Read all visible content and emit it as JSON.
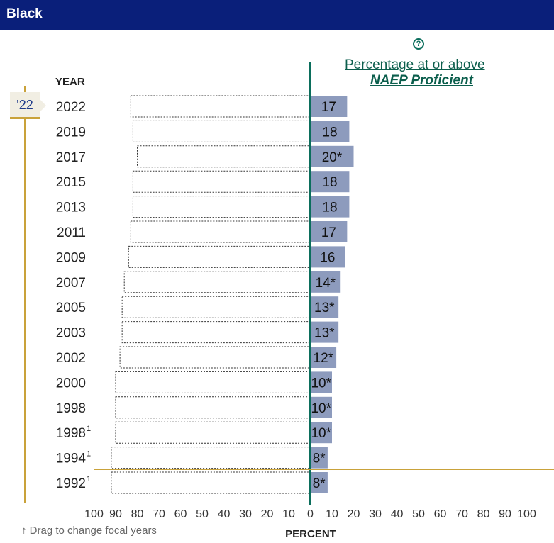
{
  "header": {
    "title": "Black"
  },
  "measure": {
    "line1": "Percentage at or above",
    "line2": "NAEP Proficient"
  },
  "help_icon": "help-circle-icon",
  "focal": {
    "label": "'22"
  },
  "drag_hint": "↑ Drag to change focal years",
  "colors": {
    "header": "#0a1f7a",
    "bar": "#8d9bbd",
    "axis": "#0b6e5c",
    "slider": "#c9a23a"
  },
  "chart_data": {
    "type": "bar",
    "orientation": "horizontal",
    "y_header": "YEAR",
    "xlabel": "PERCENT",
    "xlim": [
      -100,
      100
    ],
    "x_ticks": [
      "100",
      "90",
      "80",
      "70",
      "60",
      "50",
      "40",
      "30",
      "20",
      "10",
      "0",
      "10",
      "20",
      "30",
      "40",
      "50",
      "60",
      "70",
      "80",
      "90",
      "100"
    ],
    "categories": [
      {
        "year": "2022",
        "sup": ""
      },
      {
        "year": "2019",
        "sup": ""
      },
      {
        "year": "2017",
        "sup": ""
      },
      {
        "year": "2015",
        "sup": ""
      },
      {
        "year": "2013",
        "sup": ""
      },
      {
        "year": "2011",
        "sup": ""
      },
      {
        "year": "2009",
        "sup": ""
      },
      {
        "year": "2007",
        "sup": ""
      },
      {
        "year": "2005",
        "sup": ""
      },
      {
        "year": "2003",
        "sup": ""
      },
      {
        "year": "2002",
        "sup": ""
      },
      {
        "year": "2000",
        "sup": ""
      },
      {
        "year": "1998",
        "sup": ""
      },
      {
        "year": "1998",
        "sup": "1"
      },
      {
        "year": "1994",
        "sup": "1"
      },
      {
        "year": "1992",
        "sup": "1"
      }
    ],
    "values": [
      17,
      18,
      20,
      18,
      18,
      17,
      16,
      14,
      13,
      13,
      12,
      10,
      10,
      10,
      8,
      8
    ],
    "labels": [
      "17",
      "18",
      "20*",
      "18",
      "18",
      "17",
      "16",
      "14*",
      "13*",
      "13*",
      "12*",
      "10*",
      "10*",
      "10*",
      "8*",
      "8*"
    ],
    "below_values": [
      83,
      82,
      80,
      82,
      82,
      83,
      84,
      86,
      87,
      87,
      88,
      90,
      90,
      90,
      92,
      92
    ]
  }
}
